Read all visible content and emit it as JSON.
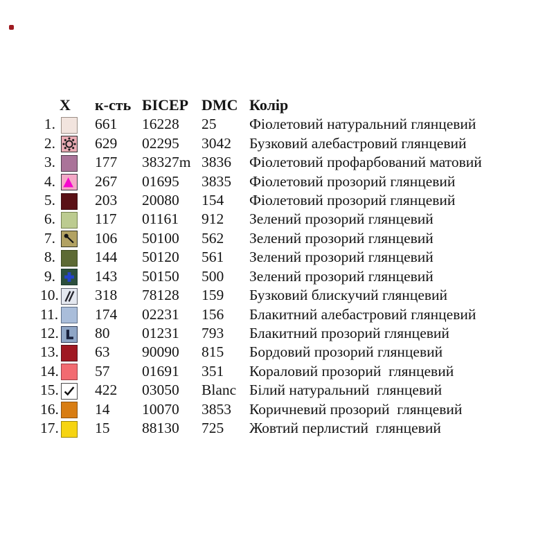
{
  "page": {
    "background": "#ffffff",
    "corner_marker_color": "#9e1a20"
  },
  "table": {
    "headers": {
      "symbol": "X",
      "count": "к-сть",
      "bead": "БІСЕР",
      "dmc": "DMC",
      "color": "Колір"
    },
    "rows": [
      {
        "num": "1.",
        "symbol": {
          "bg": "#f2e4de",
          "border": "#9b8e85",
          "glyph": "none",
          "glyph_color": ""
        },
        "count": "661",
        "bead": "16228",
        "dmc": "25",
        "color": "Фіолетовий натуральний глянцевий"
      },
      {
        "num": "2.",
        "symbol": {
          "bg": "#e9abb4",
          "border": "#2e2e2e",
          "glyph": "sun",
          "glyph_color": "#1a1a1a"
        },
        "count": "629",
        "bead": "02295",
        "dmc": "3042",
        "color": "Бузковий алебастровий глянцевий"
      },
      {
        "num": "3.",
        "symbol": {
          "bg": "#aa7399",
          "border": "#4f3b4a",
          "glyph": "none",
          "glyph_color": ""
        },
        "count": "177",
        "bead": "38327m",
        "dmc": "3836",
        "color": "Фіолетовий профарбований матовий"
      },
      {
        "num": "4.",
        "symbol": {
          "bg": "#f4a8c7",
          "border": "#3a3340",
          "glyph": "triangle",
          "glyph_color": "#f508ce"
        },
        "count": "267",
        "bead": "01695",
        "dmc": "3835",
        "color": "Фіолетовий прозорий глянцевий"
      },
      {
        "num": "5.",
        "symbol": {
          "bg": "#5a1116",
          "border": "#3c1014",
          "glyph": "none",
          "glyph_color": ""
        },
        "count": "203",
        "bead": "20080",
        "dmc": "154",
        "color": "Фіолетовий прозорий глянцевий"
      },
      {
        "num": "6.",
        "symbol": {
          "bg": "#bccb90",
          "border": "#74814f",
          "glyph": "none",
          "glyph_color": ""
        },
        "count": "117",
        "bead": "01161",
        "dmc": "912",
        "color": "Зелений прозорий глянцевий"
      },
      {
        "num": "7.",
        "symbol": {
          "bg": "#b2a263",
          "border": "#333322",
          "glyph": "pin",
          "glyph_color": "#151515"
        },
        "count": "106",
        "bead": "50100",
        "dmc": "562",
        "color": "Зелений прозорий глянцевий"
      },
      {
        "num": "8.",
        "symbol": {
          "bg": "#5d6a34",
          "border": "#3e4a22",
          "glyph": "none",
          "glyph_color": ""
        },
        "count": "144",
        "bead": "50120",
        "dmc": "561",
        "color": "Зелений прозорий глянцевий"
      },
      {
        "num": "9.",
        "symbol": {
          "bg": "#2c4f3e",
          "border": "#1e3a2c",
          "glyph": "cross",
          "glyph_color": "#2343cb"
        },
        "count": "143",
        "bead": "50150",
        "dmc": "500",
        "color": "Зелений прозорий глянцевий"
      },
      {
        "num": "10.",
        "symbol": {
          "bg": "#e4e8f0",
          "border": "#5e626e",
          "glyph": "slashes",
          "glyph_color": "#26262e"
        },
        "count": "318",
        "bead": "78128",
        "dmc": "159",
        "color": "Бузковий блискучий глянцевий"
      },
      {
        "num": "11.",
        "symbol": {
          "bg": "#a9bdda",
          "border": "#5d6f88",
          "glyph": "none",
          "glyph_color": ""
        },
        "count": "174",
        "bead": "02231",
        "dmc": "156",
        "color": "Блакитний алебастровий глянцевий"
      },
      {
        "num": "12.",
        "symbol": {
          "bg": "#8fa6c6",
          "border": "#2e3a55",
          "glyph": "letter-L",
          "glyph_color": "#19223e"
        },
        "count": "80",
        "bead": "01231",
        "dmc": "793",
        "color": "Блакитний прозорий глянцевий"
      },
      {
        "num": "13.",
        "symbol": {
          "bg": "#9f1822",
          "border": "#55121a",
          "glyph": "none",
          "glyph_color": ""
        },
        "count": "63",
        "bead": "90090",
        "dmc": "815",
        "color": "Бордовий прозорий глянцевий"
      },
      {
        "num": "14.",
        "symbol": {
          "bg": "#f26b71",
          "border": "#9c3f46",
          "glyph": "none",
          "glyph_color": ""
        },
        "count": "57",
        "bead": "01691",
        "dmc": "351",
        "color": "Кораловий прозорий  глянцевий"
      },
      {
        "num": "15.",
        "symbol": {
          "bg": "#ffffff",
          "border": "#4b4b4b",
          "glyph": "check",
          "glyph_color": "#111111"
        },
        "count": "422",
        "bead": "03050",
        "dmc": "Blanc",
        "color": "Білий натуральний  глянцевий"
      },
      {
        "num": "16.",
        "symbol": {
          "bg": "#d87d13",
          "border": "#8d5310",
          "glyph": "none",
          "glyph_color": ""
        },
        "count": "14",
        "bead": "10070",
        "dmc": "3853",
        "color": "Коричневий прозорий  глянцевий"
      },
      {
        "num": "17.",
        "symbol": {
          "bg": "#f6d411",
          "border": "#9c8708",
          "glyph": "none",
          "glyph_color": ""
        },
        "count": "15",
        "bead": "88130",
        "dmc": "725",
        "color": "Жовтий перлистий  глянцевий"
      }
    ]
  }
}
